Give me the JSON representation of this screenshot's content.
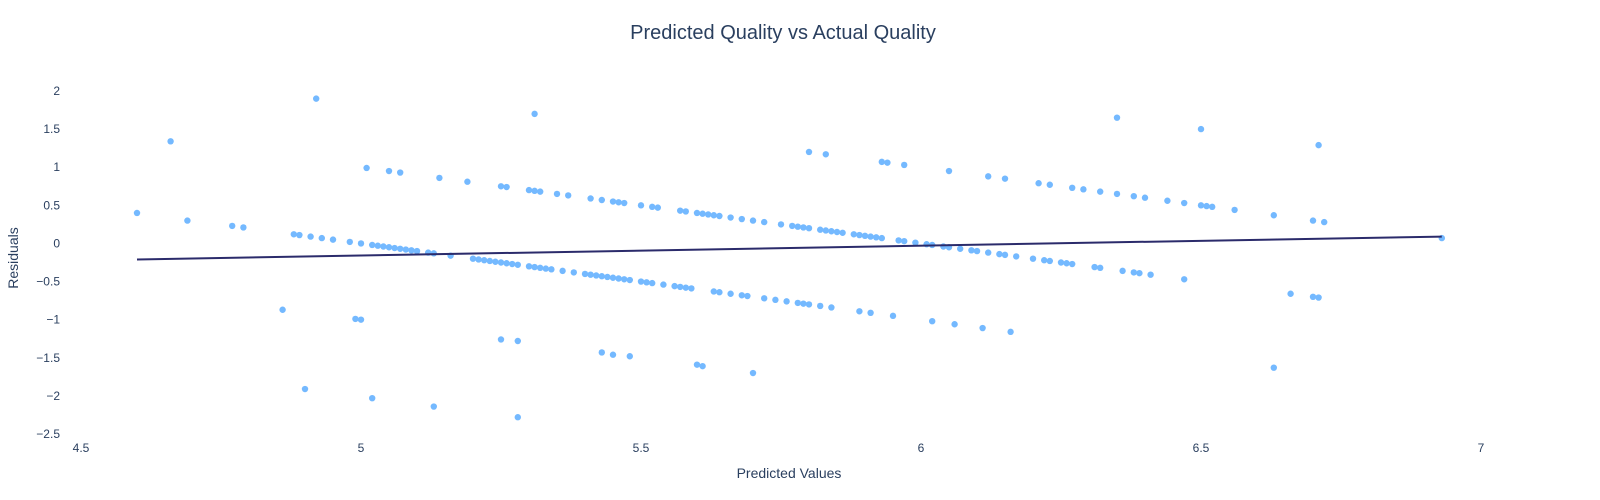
{
  "chart_data": {
    "type": "scatter",
    "title": "Predicted Quality vs Actual Quality",
    "xlabel": "Predicted Values",
    "ylabel": "Residuals",
    "xlim": [
      4.5,
      7.0
    ],
    "ylim": [
      -2.5,
      2.0
    ],
    "x_ticks": [
      "4.5",
      "5",
      "5.5",
      "6",
      "6.5",
      "7"
    ],
    "y_ticks": [
      "2",
      "1.5",
      "1",
      "0.5",
      "0",
      "−0.5",
      "−1",
      "−1.5",
      "−2",
      "−2.5"
    ],
    "x_tick_values": [
      4.5,
      5.0,
      5.5,
      6.0,
      6.5,
      7.0
    ],
    "y_tick_values": [
      2,
      1.5,
      1,
      0.5,
      0,
      -0.5,
      -1,
      -1.5,
      -2,
      -2.5
    ],
    "grid": false,
    "point_color": "#74b9ff",
    "line_color": "#2b2b6b",
    "series": [
      {
        "kind": "scatter",
        "points": [
          [
            4.6,
            0.4
          ],
          [
            4.66,
            1.34
          ],
          [
            4.69,
            0.3
          ],
          [
            4.77,
            0.23
          ],
          [
            4.79,
            0.21
          ],
          [
            4.86,
            -0.87
          ],
          [
            4.88,
            0.12
          ],
          [
            4.89,
            0.11
          ],
          [
            4.91,
            0.09
          ],
          [
            4.93,
            0.07
          ],
          [
            4.95,
            0.05
          ],
          [
            4.98,
            0.02
          ],
          [
            5.0,
            0.0
          ],
          [
            5.02,
            -0.02
          ],
          [
            5.03,
            -0.03
          ],
          [
            5.04,
            -0.04
          ],
          [
            5.05,
            -0.05
          ],
          [
            5.06,
            -0.06
          ],
          [
            5.07,
            -0.07
          ],
          [
            5.08,
            -0.08
          ],
          [
            5.09,
            -0.09
          ],
          [
            5.1,
            -0.1
          ],
          [
            5.12,
            -0.12
          ],
          [
            5.13,
            -0.13
          ],
          [
            5.16,
            -0.16
          ],
          [
            5.2,
            -0.2
          ],
          [
            5.21,
            -0.21
          ],
          [
            5.22,
            -0.22
          ],
          [
            5.23,
            -0.23
          ],
          [
            5.24,
            -0.24
          ],
          [
            5.25,
            -0.25
          ],
          [
            5.26,
            -0.26
          ],
          [
            5.27,
            -0.27
          ],
          [
            5.28,
            -0.28
          ],
          [
            5.3,
            -0.3
          ],
          [
            5.31,
            -0.31
          ],
          [
            5.32,
            -0.32
          ],
          [
            5.33,
            -0.33
          ],
          [
            5.34,
            -0.34
          ],
          [
            5.36,
            -0.36
          ],
          [
            5.38,
            -0.38
          ],
          [
            5.4,
            -0.4
          ],
          [
            5.41,
            -0.41
          ],
          [
            5.42,
            -0.42
          ],
          [
            5.43,
            -0.43
          ],
          [
            5.44,
            -0.44
          ],
          [
            5.45,
            -0.45
          ],
          [
            5.46,
            -0.46
          ],
          [
            5.47,
            -0.47
          ],
          [
            5.48,
            -0.48
          ],
          [
            5.5,
            -0.5
          ],
          [
            5.51,
            -0.51
          ],
          [
            5.52,
            -0.52
          ],
          [
            5.54,
            -0.54
          ],
          [
            5.56,
            -0.56
          ],
          [
            5.57,
            -0.57
          ],
          [
            5.58,
            -0.58
          ],
          [
            5.59,
            -0.59
          ],
          [
            5.63,
            -0.63
          ],
          [
            5.64,
            -0.64
          ],
          [
            5.66,
            -0.66
          ],
          [
            5.68,
            -0.68
          ],
          [
            5.69,
            -0.69
          ],
          [
            5.72,
            -0.72
          ],
          [
            5.74,
            -0.74
          ],
          [
            5.76,
            -0.76
          ],
          [
            5.78,
            -0.78
          ],
          [
            5.79,
            -0.79
          ],
          [
            5.8,
            -0.8
          ],
          [
            5.82,
            -0.82
          ],
          [
            5.84,
            -0.84
          ],
          [
            5.89,
            -0.89
          ],
          [
            5.91,
            -0.91
          ],
          [
            5.95,
            -0.95
          ],
          [
            6.02,
            -1.02
          ],
          [
            6.06,
            -1.06
          ],
          [
            6.11,
            -1.11
          ],
          [
            6.16,
            -1.16
          ],
          [
            4.9,
            -1.91
          ],
          [
            5.02,
            -2.03
          ],
          [
            5.13,
            -2.14
          ],
          [
            5.28,
            -2.28
          ],
          [
            4.99,
            -0.99
          ],
          [
            5.0,
            -1.0
          ],
          [
            5.25,
            -1.26
          ],
          [
            5.28,
            -1.28
          ],
          [
            5.43,
            -1.43
          ],
          [
            5.45,
            -1.46
          ],
          [
            5.48,
            -1.48
          ],
          [
            5.6,
            -1.59
          ],
          [
            5.61,
            -1.61
          ],
          [
            5.7,
            -1.7
          ],
          [
            5.01,
            0.99
          ],
          [
            5.05,
            0.95
          ],
          [
            5.07,
            0.93
          ],
          [
            5.14,
            0.86
          ],
          [
            5.19,
            0.81
          ],
          [
            5.25,
            0.75
          ],
          [
            5.26,
            0.74
          ],
          [
            5.3,
            0.7
          ],
          [
            5.31,
            0.69
          ],
          [
            5.32,
            0.68
          ],
          [
            5.35,
            0.65
          ],
          [
            5.37,
            0.63
          ],
          [
            5.41,
            0.59
          ],
          [
            5.43,
            0.57
          ],
          [
            5.45,
            0.55
          ],
          [
            5.46,
            0.54
          ],
          [
            5.47,
            0.53
          ],
          [
            5.5,
            0.5
          ],
          [
            5.52,
            0.48
          ],
          [
            5.53,
            0.47
          ],
          [
            5.57,
            0.43
          ],
          [
            5.58,
            0.42
          ],
          [
            5.6,
            0.4
          ],
          [
            5.61,
            0.39
          ],
          [
            5.62,
            0.38
          ],
          [
            5.63,
            0.37
          ],
          [
            5.64,
            0.36
          ],
          [
            5.66,
            0.34
          ],
          [
            5.68,
            0.32
          ],
          [
            5.7,
            0.3
          ],
          [
            5.72,
            0.28
          ],
          [
            5.75,
            0.25
          ],
          [
            5.77,
            0.23
          ],
          [
            5.78,
            0.22
          ],
          [
            5.79,
            0.21
          ],
          [
            5.8,
            0.2
          ],
          [
            5.82,
            0.18
          ],
          [
            5.83,
            0.17
          ],
          [
            5.84,
            0.16
          ],
          [
            5.85,
            0.15
          ],
          [
            5.86,
            0.14
          ],
          [
            5.88,
            0.12
          ],
          [
            5.89,
            0.11
          ],
          [
            5.9,
            0.1
          ],
          [
            5.91,
            0.09
          ],
          [
            5.92,
            0.08
          ],
          [
            5.93,
            0.07
          ],
          [
            5.96,
            0.04
          ],
          [
            5.97,
            0.03
          ],
          [
            5.99,
            0.01
          ],
          [
            6.01,
            -0.01
          ],
          [
            6.02,
            -0.02
          ],
          [
            6.04,
            -0.04
          ],
          [
            6.05,
            -0.05
          ],
          [
            6.07,
            -0.07
          ],
          [
            6.09,
            -0.09
          ],
          [
            6.1,
            -0.1
          ],
          [
            6.12,
            -0.12
          ],
          [
            6.14,
            -0.14
          ],
          [
            6.15,
            -0.15
          ],
          [
            6.17,
            -0.17
          ],
          [
            6.2,
            -0.2
          ],
          [
            6.22,
            -0.22
          ],
          [
            6.23,
            -0.23
          ],
          [
            6.25,
            -0.25
          ],
          [
            6.26,
            -0.26
          ],
          [
            6.27,
            -0.27
          ],
          [
            6.31,
            -0.31
          ],
          [
            6.32,
            -0.32
          ],
          [
            6.36,
            -0.36
          ],
          [
            6.38,
            -0.38
          ],
          [
            6.39,
            -0.39
          ],
          [
            6.41,
            -0.41
          ],
          [
            6.47,
            -0.47
          ],
          [
            5.8,
            1.2
          ],
          [
            5.83,
            1.17
          ],
          [
            5.93,
            1.07
          ],
          [
            5.94,
            1.06
          ],
          [
            5.97,
            1.03
          ],
          [
            6.05,
            0.95
          ],
          [
            6.12,
            0.88
          ],
          [
            6.15,
            0.85
          ],
          [
            6.21,
            0.79
          ],
          [
            6.23,
            0.77
          ],
          [
            6.27,
            0.73
          ],
          [
            6.29,
            0.71
          ],
          [
            6.32,
            0.68
          ],
          [
            6.35,
            0.65
          ],
          [
            6.38,
            0.62
          ],
          [
            6.4,
            0.6
          ],
          [
            6.44,
            0.56
          ],
          [
            6.47,
            0.53
          ],
          [
            6.5,
            0.5
          ],
          [
            6.51,
            0.49
          ],
          [
            6.52,
            0.48
          ],
          [
            6.56,
            0.44
          ],
          [
            6.63,
            0.37
          ],
          [
            6.7,
            0.3
          ],
          [
            6.72,
            0.28
          ],
          [
            6.93,
            0.07
          ],
          [
            4.92,
            1.9
          ],
          [
            5.31,
            1.7
          ],
          [
            6.35,
            1.65
          ],
          [
            6.5,
            1.5
          ],
          [
            6.71,
            1.29
          ],
          [
            6.63,
            -1.63
          ],
          [
            6.66,
            -0.66
          ],
          [
            6.7,
            -0.7
          ],
          [
            6.71,
            -0.71
          ]
        ]
      },
      {
        "kind": "line",
        "points": [
          [
            4.6,
            -0.21
          ],
          [
            6.93,
            0.09
          ]
        ]
      }
    ]
  }
}
